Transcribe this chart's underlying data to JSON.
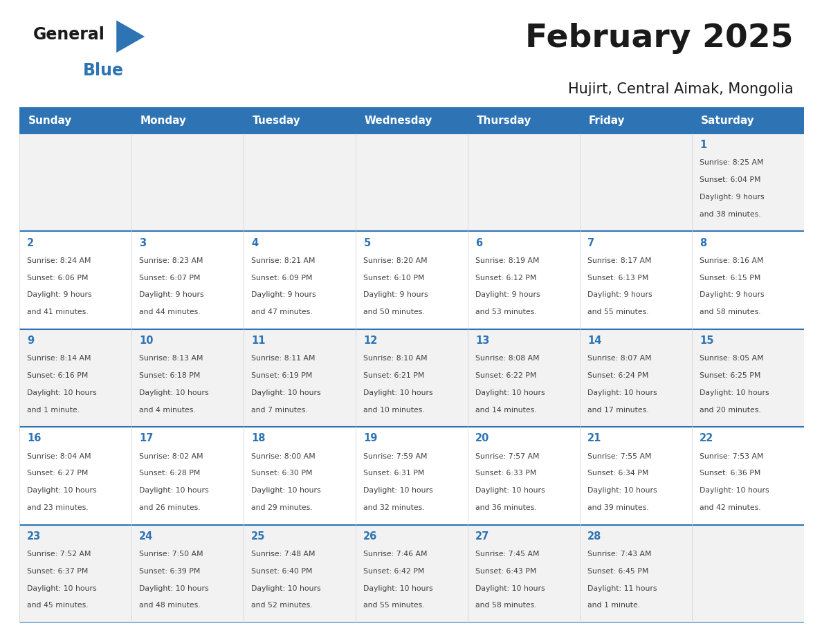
{
  "title": "February 2025",
  "subtitle": "Hujirt, Central Aimak, Mongolia",
  "days_of_week": [
    "Sunday",
    "Monday",
    "Tuesday",
    "Wednesday",
    "Thursday",
    "Friday",
    "Saturday"
  ],
  "header_bg": "#2E74B5",
  "header_text": "#FFFFFF",
  "cell_bg_odd": "#F2F2F2",
  "cell_bg_even": "#FFFFFF",
  "grid_line_color": "#2E74B5",
  "day_num_color": "#2E74B5",
  "info_color": "#404040",
  "title_color": "#1a1a1a",
  "logo_general_color": "#1a1a1a",
  "logo_blue_color": "#2E74B5",
  "logo_triangle_color": "#2E74B5",
  "calendar_data": [
    {
      "day": 1,
      "col": 6,
      "row": 0,
      "sunrise": "8:25 AM",
      "sunset": "6:04 PM",
      "daylight": "9 hours",
      "daylight2": "and 38 minutes."
    },
    {
      "day": 2,
      "col": 0,
      "row": 1,
      "sunrise": "8:24 AM",
      "sunset": "6:06 PM",
      "daylight": "9 hours",
      "daylight2": "and 41 minutes."
    },
    {
      "day": 3,
      "col": 1,
      "row": 1,
      "sunrise": "8:23 AM",
      "sunset": "6:07 PM",
      "daylight": "9 hours",
      "daylight2": "and 44 minutes."
    },
    {
      "day": 4,
      "col": 2,
      "row": 1,
      "sunrise": "8:21 AM",
      "sunset": "6:09 PM",
      "daylight": "9 hours",
      "daylight2": "and 47 minutes."
    },
    {
      "day": 5,
      "col": 3,
      "row": 1,
      "sunrise": "8:20 AM",
      "sunset": "6:10 PM",
      "daylight": "9 hours",
      "daylight2": "and 50 minutes."
    },
    {
      "day": 6,
      "col": 4,
      "row": 1,
      "sunrise": "8:19 AM",
      "sunset": "6:12 PM",
      "daylight": "9 hours",
      "daylight2": "and 53 minutes."
    },
    {
      "day": 7,
      "col": 5,
      "row": 1,
      "sunrise": "8:17 AM",
      "sunset": "6:13 PM",
      "daylight": "9 hours",
      "daylight2": "and 55 minutes."
    },
    {
      "day": 8,
      "col": 6,
      "row": 1,
      "sunrise": "8:16 AM",
      "sunset": "6:15 PM",
      "daylight": "9 hours",
      "daylight2": "and 58 minutes."
    },
    {
      "day": 9,
      "col": 0,
      "row": 2,
      "sunrise": "8:14 AM",
      "sunset": "6:16 PM",
      "daylight": "10 hours",
      "daylight2": "and 1 minute."
    },
    {
      "day": 10,
      "col": 1,
      "row": 2,
      "sunrise": "8:13 AM",
      "sunset": "6:18 PM",
      "daylight": "10 hours",
      "daylight2": "and 4 minutes."
    },
    {
      "day": 11,
      "col": 2,
      "row": 2,
      "sunrise": "8:11 AM",
      "sunset": "6:19 PM",
      "daylight": "10 hours",
      "daylight2": "and 7 minutes."
    },
    {
      "day": 12,
      "col": 3,
      "row": 2,
      "sunrise": "8:10 AM",
      "sunset": "6:21 PM",
      "daylight": "10 hours",
      "daylight2": "and 10 minutes."
    },
    {
      "day": 13,
      "col": 4,
      "row": 2,
      "sunrise": "8:08 AM",
      "sunset": "6:22 PM",
      "daylight": "10 hours",
      "daylight2": "and 14 minutes."
    },
    {
      "day": 14,
      "col": 5,
      "row": 2,
      "sunrise": "8:07 AM",
      "sunset": "6:24 PM",
      "daylight": "10 hours",
      "daylight2": "and 17 minutes."
    },
    {
      "day": 15,
      "col": 6,
      "row": 2,
      "sunrise": "8:05 AM",
      "sunset": "6:25 PM",
      "daylight": "10 hours",
      "daylight2": "and 20 minutes."
    },
    {
      "day": 16,
      "col": 0,
      "row": 3,
      "sunrise": "8:04 AM",
      "sunset": "6:27 PM",
      "daylight": "10 hours",
      "daylight2": "and 23 minutes."
    },
    {
      "day": 17,
      "col": 1,
      "row": 3,
      "sunrise": "8:02 AM",
      "sunset": "6:28 PM",
      "daylight": "10 hours",
      "daylight2": "and 26 minutes."
    },
    {
      "day": 18,
      "col": 2,
      "row": 3,
      "sunrise": "8:00 AM",
      "sunset": "6:30 PM",
      "daylight": "10 hours",
      "daylight2": "and 29 minutes."
    },
    {
      "day": 19,
      "col": 3,
      "row": 3,
      "sunrise": "7:59 AM",
      "sunset": "6:31 PM",
      "daylight": "10 hours",
      "daylight2": "and 32 minutes."
    },
    {
      "day": 20,
      "col": 4,
      "row": 3,
      "sunrise": "7:57 AM",
      "sunset": "6:33 PM",
      "daylight": "10 hours",
      "daylight2": "and 36 minutes."
    },
    {
      "day": 21,
      "col": 5,
      "row": 3,
      "sunrise": "7:55 AM",
      "sunset": "6:34 PM",
      "daylight": "10 hours",
      "daylight2": "and 39 minutes."
    },
    {
      "day": 22,
      "col": 6,
      "row": 3,
      "sunrise": "7:53 AM",
      "sunset": "6:36 PM",
      "daylight": "10 hours",
      "daylight2": "and 42 minutes."
    },
    {
      "day": 23,
      "col": 0,
      "row": 4,
      "sunrise": "7:52 AM",
      "sunset": "6:37 PM",
      "daylight": "10 hours",
      "daylight2": "and 45 minutes."
    },
    {
      "day": 24,
      "col": 1,
      "row": 4,
      "sunrise": "7:50 AM",
      "sunset": "6:39 PM",
      "daylight": "10 hours",
      "daylight2": "and 48 minutes."
    },
    {
      "day": 25,
      "col": 2,
      "row": 4,
      "sunrise": "7:48 AM",
      "sunset": "6:40 PM",
      "daylight": "10 hours",
      "daylight2": "and 52 minutes."
    },
    {
      "day": 26,
      "col": 3,
      "row": 4,
      "sunrise": "7:46 AM",
      "sunset": "6:42 PM",
      "daylight": "10 hours",
      "daylight2": "and 55 minutes."
    },
    {
      "day": 27,
      "col": 4,
      "row": 4,
      "sunrise": "7:45 AM",
      "sunset": "6:43 PM",
      "daylight": "10 hours",
      "daylight2": "and 58 minutes."
    },
    {
      "day": 28,
      "col": 5,
      "row": 4,
      "sunrise": "7:43 AM",
      "sunset": "6:45 PM",
      "daylight": "11 hours",
      "daylight2": "and 1 minute."
    }
  ],
  "num_rows": 5,
  "num_cols": 7
}
